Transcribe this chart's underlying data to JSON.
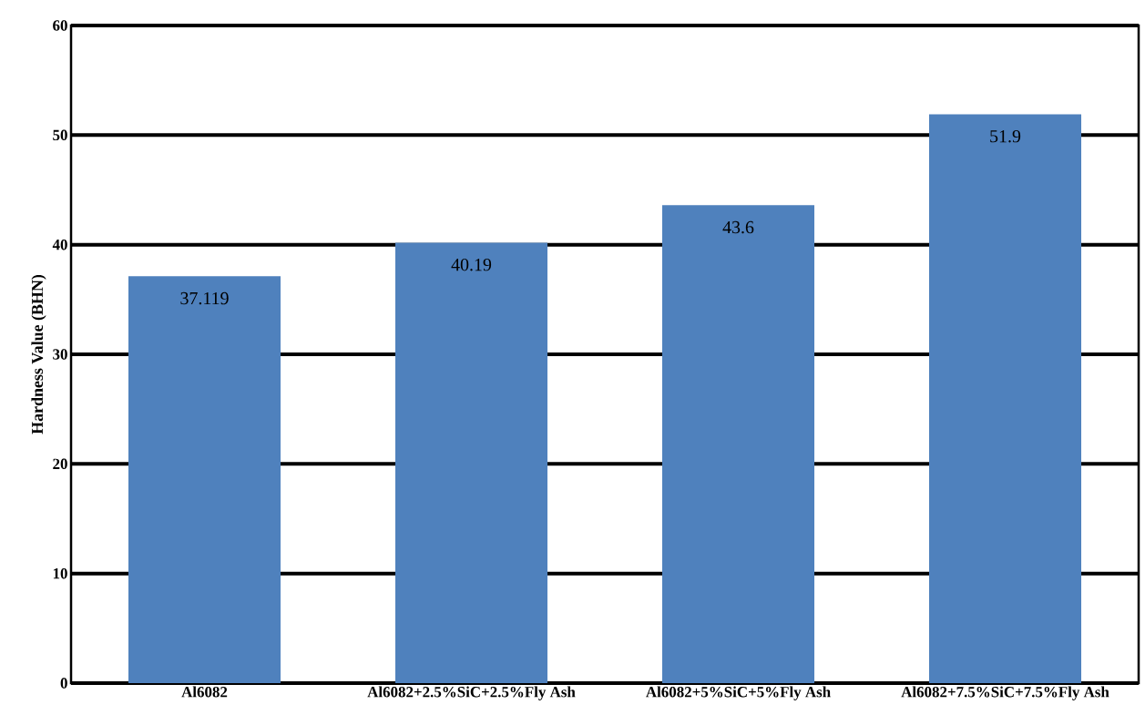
{
  "chart_data": {
    "type": "bar",
    "ylabel": "Hardness Value (BHN)",
    "categories": [
      "Al6082",
      "Al6082+2.5%SiC+2.5%Fly Ash",
      "Al6082+5%SiC+5%Fly Ash",
      "Al6082+7.5%SiC+7.5%Fly Ash"
    ],
    "values": [
      37.119,
      40.19,
      43.6,
      51.9
    ],
    "color": "#4f81bd",
    "data_labels": true,
    "grid": "y",
    "ylim": [
      0,
      60
    ],
    "yticks": [
      0,
      10,
      20,
      30,
      40,
      50,
      60
    ]
  }
}
